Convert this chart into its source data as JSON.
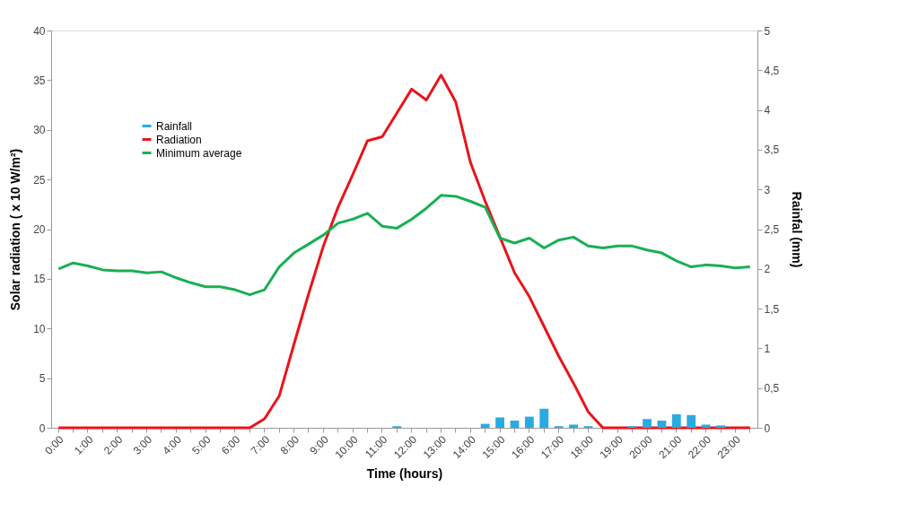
{
  "chart_data": {
    "type": "line",
    "xlabel": "Time (hours)",
    "ylabel": "Solar radiation ( x 10 W/m²)",
    "y2label": "Rainfal (mm)",
    "categories": [
      "0:00",
      null,
      "1:00",
      null,
      "2:00",
      null,
      "3:00",
      null,
      "4:00",
      null,
      "5:00",
      null,
      "6:00",
      null,
      "7:00",
      null,
      "8:00",
      null,
      "9:00",
      null,
      "10:00",
      null,
      "11:00",
      null,
      "12:00",
      null,
      "13:00",
      null,
      "14:00",
      null,
      "15:00",
      null,
      "16:00",
      null,
      "17:00",
      null,
      "18:00",
      null,
      "19:00",
      null,
      "20:00",
      null,
      "21:00",
      null,
      "22:00",
      null,
      "23:00",
      null
    ],
    "series": [
      {
        "name": "Rainfall",
        "type": "bar",
        "axis": "y2",
        "color": "#29abe2",
        "values": [
          null,
          null,
          null,
          null,
          null,
          null,
          null,
          null,
          null,
          null,
          null,
          null,
          null,
          null,
          null,
          null,
          null,
          null,
          null,
          null,
          null,
          null,
          null,
          0.02,
          null,
          null,
          null,
          null,
          null,
          0.05,
          0.13,
          0.09,
          0.14,
          0.24,
          0.02,
          0.04,
          0.02,
          null,
          null,
          0.02,
          0.11,
          0.09,
          0.17,
          0.16,
          0.04,
          0.03,
          null,
          null
        ]
      },
      {
        "name": "Radiation",
        "color": "#e8141b",
        "values": [
          0,
          0,
          0,
          0,
          0,
          0,
          0,
          0,
          0,
          0,
          0,
          0,
          0,
          0,
          0.9,
          3.2,
          8.4,
          13.5,
          18.3,
          22.2,
          25.5,
          28.9,
          29.3,
          31.7,
          34.1,
          33.0,
          35.5,
          32.8,
          26.7,
          22.8,
          19.2,
          15.6,
          13.2,
          10.2,
          7.2,
          4.5,
          1.6,
          0,
          0,
          0,
          0,
          0,
          0,
          0,
          0,
          0,
          0,
          0
        ]
      },
      {
        "name": "Minimum average",
        "color": "#1aaf54",
        "values": [
          16.0,
          16.6,
          16.3,
          15.9,
          15.8,
          15.8,
          15.6,
          15.7,
          15.1,
          14.6,
          14.2,
          14.2,
          13.9,
          13.4,
          13.9,
          16.2,
          17.6,
          18.5,
          19.4,
          20.6,
          21.0,
          21.6,
          20.3,
          20.1,
          21.0,
          22.1,
          23.4,
          23.3,
          22.8,
          22.2,
          19.1,
          18.6,
          19.1,
          18.1,
          18.9,
          19.2,
          18.3,
          18.1,
          18.3,
          18.3,
          17.9,
          17.6,
          16.8,
          16.2,
          16.4,
          16.3,
          16.1,
          16.2
        ]
      }
    ],
    "ylim": [
      0,
      40
    ],
    "yticks": [
      0,
      5,
      10,
      15,
      20,
      25,
      30,
      35,
      40
    ],
    "y2lim": [
      0,
      5
    ],
    "y2ticks": [
      0,
      {
        "value": 0.5,
        "label": "0,5"
      },
      1,
      {
        "value": 1.5,
        "label": "1,5"
      },
      2,
      {
        "value": 2.5,
        "label": "2,5"
      },
      3,
      {
        "value": 3.5,
        "label": "3,5"
      },
      4,
      {
        "value": 4.5,
        "label": "4,5"
      },
      5
    ],
    "grid": false,
    "legend": "top left"
  }
}
